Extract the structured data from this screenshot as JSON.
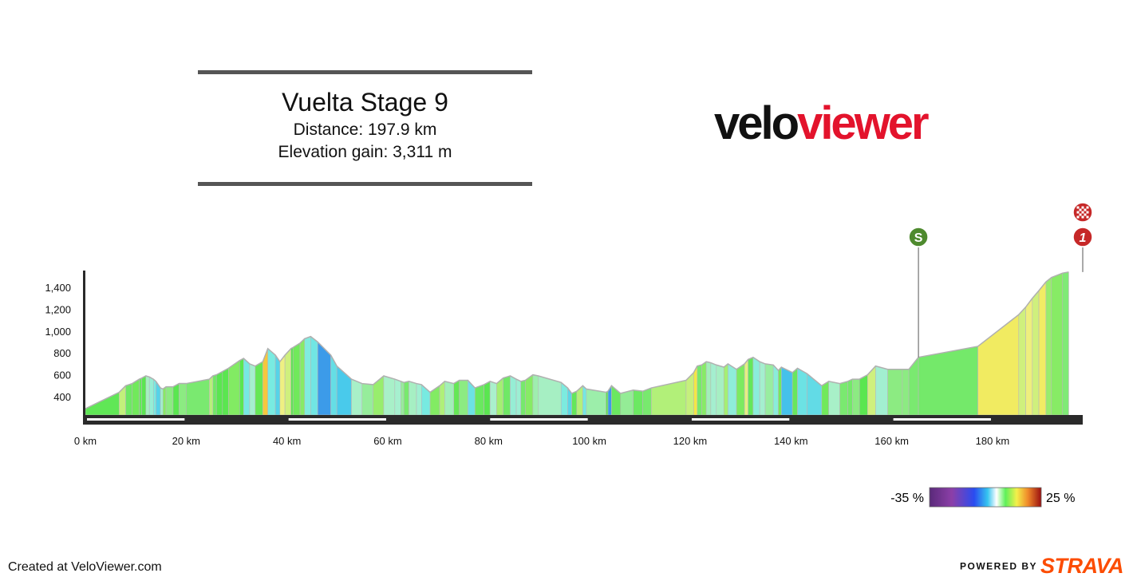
{
  "header": {
    "title": "Vuelta Stage 9",
    "distance_line": "Distance: 197.9 km",
    "elevation_line": "Elevation gain: 3,311 m"
  },
  "logo": {
    "part1": "velo",
    "part2": "viewer",
    "color1": "#111111",
    "color2": "#e3132c"
  },
  "footer": {
    "created": "Created at VeloViewer.com",
    "powered_by": "POWERED BY",
    "strava": "STRAVA"
  },
  "legend": {
    "min_label": "-35 %",
    "max_label": "25 %"
  },
  "markers": [
    {
      "type": "sprint",
      "letter": "S",
      "km": 165.3,
      "color": "#4e8a2e"
    },
    {
      "type": "mountain",
      "letter": "1",
      "km": 197.9,
      "color": "#c62828"
    },
    {
      "type": "finish",
      "letter": "",
      "km": 197.9,
      "color": "#c62828"
    }
  ],
  "chart_data": {
    "type": "area",
    "title": "",
    "xlabel": "",
    "ylabel": "",
    "x_unit": "km",
    "xlim": [
      0,
      197.9
    ],
    "ylim": [
      200,
      1520
    ],
    "x_ticks": [
      0,
      20,
      40,
      60,
      80,
      100,
      120,
      140,
      160,
      180
    ],
    "x_tick_labels": [
      "0 km",
      "20 km",
      "40 km",
      "60 km",
      "80 km",
      "100 km",
      "120 km",
      "140 km",
      "160 km",
      "180 km"
    ],
    "y_ticks": [
      400,
      600,
      800,
      1000,
      1200,
      1400
    ],
    "y_tick_labels": [
      "400",
      "600",
      "800",
      "1,000",
      "1,200",
      "1,400"
    ],
    "grid": false,
    "gradient_scale": {
      "min": -35,
      "max": 25,
      "unit": "%"
    },
    "series": [
      {
        "km": [
          0,
          6.7,
          8,
          9.3,
          10.7,
          11.2,
          12,
          12.7,
          13.5,
          14,
          14.9,
          15.4,
          16,
          17.4,
          18.6,
          20,
          24.6,
          25.3,
          26,
          27.2,
          28.4,
          30.6,
          31.4,
          32.6,
          33.7,
          35.2,
          36.2,
          37.7,
          38.6,
          39.6,
          40.8,
          41.2,
          42.6,
          43.5,
          44.7,
          46.1,
          48.7,
          49.9,
          52.8,
          54.9,
          57.1,
          59.2,
          61.4,
          62.6,
          63.2,
          64.2,
          65.7,
          66.7,
          68.4,
          70.3,
          71.3,
          73.1,
          74.2,
          75.9,
          77.3,
          79.1,
          80.3,
          81.6,
          82.9,
          84.3,
          85.5,
          86.4,
          87.3,
          88.8,
          89.9,
          94.4,
          95.7,
          96.5,
          97.5,
          98.7,
          99.4,
          103.3,
          103.7,
          104.4,
          106.2,
          108.7,
          110.6,
          112.3,
          119.2,
          120.7,
          121.4,
          122.3,
          123.2,
          124.1,
          125.2,
          126.7,
          127.5,
          129.2,
          130.8,
          131.5,
          132.5,
          133.8,
          134.9,
          136.5,
          137.5,
          138.1,
          140.3,
          141.3,
          143.2,
          146.1,
          147.5,
          149.7,
          151.3,
          152.2,
          153.6,
          155.2,
          156.8,
          159.2,
          162.1,
          163.4,
          165.3,
          177.1,
          185.2,
          186.6,
          187.9,
          189.2,
          190.6,
          191.7,
          193.9,
          195.1,
          196.3,
          197.9
        ],
        "elevation": [
          290,
          440,
          500,
          520,
          560,
          570,
          590,
          580,
          560,
          540,
          480,
          470,
          490,
          490,
          520,
          520,
          560,
          590,
          600,
          630,
          660,
          730,
          750,
          700,
          680,
          720,
          840,
          780,
          720,
          780,
          840,
          850,
          890,
          930,
          950,
          900,
          780,
          680,
          560,
          520,
          510,
          590,
          560,
          540,
          530,
          540,
          520,
          510,
          440,
          500,
          540,
          520,
          550,
          550,
          480,
          510,
          540,
          520,
          570,
          590,
          560,
          540,
          550,
          600,
          590,
          530,
          480,
          430,
          450,
          500,
          470,
          440,
          450,
          500,
          430,
          460,
          450,
          480,
          550,
          620,
          680,
          690,
          720,
          710,
          690,
          670,
          700,
          650,
          700,
          740,
          760,
          720,
          700,
          690,
          640,
          670,
          620,
          660,
          610,
          500,
          540,
          520,
          540,
          560,
          560,
          600,
          680,
          650,
          650,
          650,
          760,
          860,
          1150,
          1220,
          1300,
          1370,
          1450,
          1490,
          1530,
          1540
        ],
        "gradient_pct": [
          2.2,
          4.6,
          1.5,
          2.9,
          2,
          2.5,
          -1.3,
          -2.5,
          -4,
          -6.7,
          -2,
          3.3,
          0,
          2.5,
          0,
          0.9,
          4.3,
          1.4,
          2.5,
          2.5,
          3.2,
          2.5,
          -4.2,
          -1.8,
          2.7,
          12,
          -4,
          -6.7,
          6,
          5,
          2.5,
          2.9,
          3.3,
          -3.6,
          -4.6,
          -10,
          -5.5,
          -7.8,
          -1.4,
          -0.5,
          3.6,
          -1.4,
          -1.7,
          -0.5,
          1,
          -1.3,
          -2,
          -4.1,
          3.2,
          4,
          -1.1,
          2.7,
          0,
          -5,
          1.7,
          2.5,
          -1.5,
          3.8,
          1.4,
          -2.5,
          -2.2,
          1.1,
          3.3,
          -0.9,
          -1.3,
          -3.8,
          -6.3,
          2,
          4.2,
          -4.3,
          -0.8,
          2.5,
          -10,
          1.7,
          -0.4,
          1.6,
          1,
          4.1,
          4.7,
          8.6,
          1.1,
          3.3,
          -1.1,
          -1.8,
          -1.3,
          3.8,
          -2.9,
          3.1,
          5.7,
          2,
          -3.1,
          -1.8,
          -0.6,
          -3.1,
          3,
          -8.3,
          1.8,
          -5,
          -5.8,
          2.9,
          -1.4,
          0.9,
          1.2,
          0,
          2.5,
          5,
          -1.9,
          0,
          0,
          0.9,
          1.2,
          7.4,
          5,
          6.2,
          5,
          7.3,
          3.6,
          3.3,
          0.6
        ]
      }
    ]
  }
}
